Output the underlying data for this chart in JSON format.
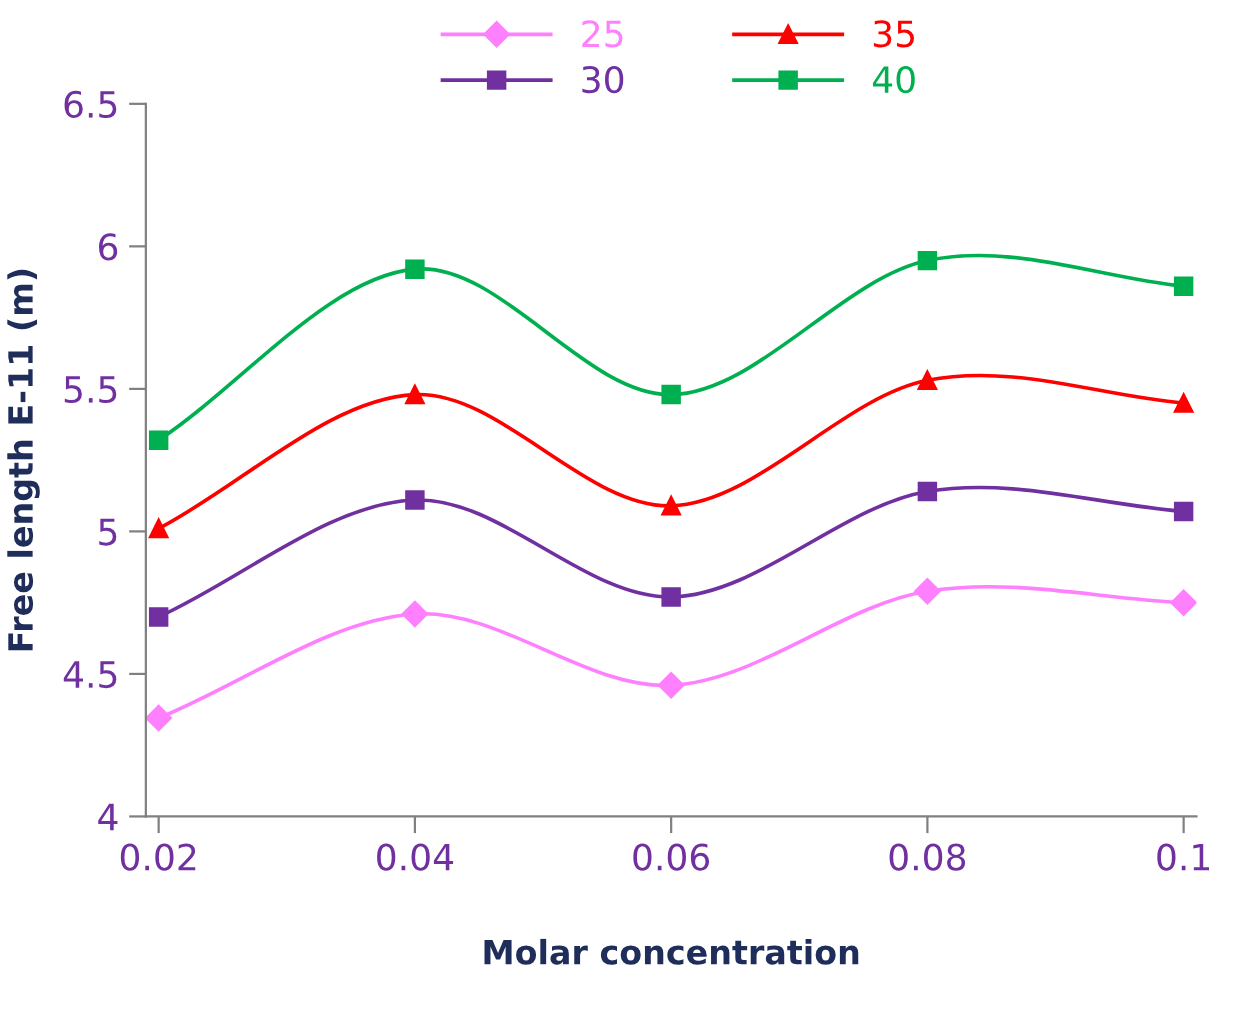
{
  "chart_data": {
    "type": "line",
    "xlabel": "Molar concentration",
    "ylabel": "Free length E-11 (m)",
    "categories": [
      "0.02",
      "0.04",
      "0.06",
      "0.08",
      "0.1"
    ],
    "series": [
      {
        "name": "25",
        "color": "#ff80ff",
        "marker": "diamond",
        "values": [
          4.345,
          4.71,
          4.46,
          4.79,
          4.75
        ]
      },
      {
        "name": "30",
        "color": "#7030a0",
        "marker": "square",
        "values": [
          4.7,
          5.11,
          4.77,
          5.14,
          5.07
        ]
      },
      {
        "name": "35",
        "color": "#ff0000",
        "marker": "triangle",
        "values": [
          5.01,
          5.48,
          5.09,
          5.53,
          5.45
        ]
      },
      {
        "name": "40",
        "color": "#00b050",
        "marker": "square",
        "values": [
          5.32,
          5.92,
          5.48,
          5.95,
          5.86
        ]
      }
    ],
    "ylim": [
      4,
      6.5
    ],
    "yticks": [
      4,
      4.5,
      5,
      5.5,
      6,
      6.5
    ],
    "grid": false,
    "legend": "top",
    "line_style": "solid"
  }
}
